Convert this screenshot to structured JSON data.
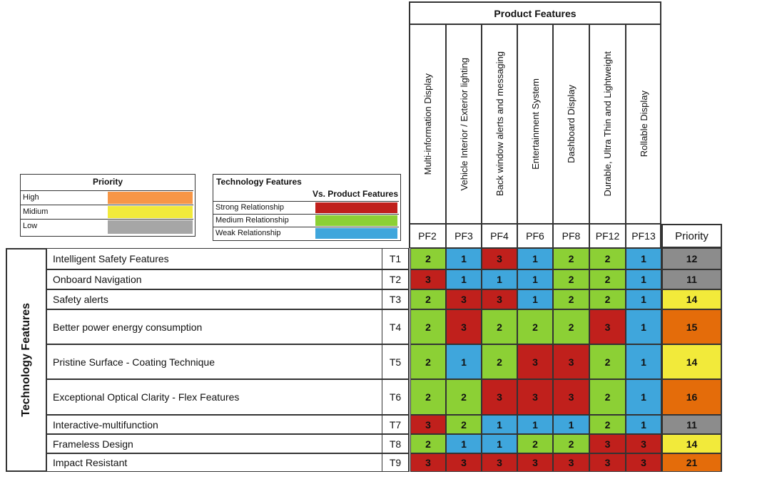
{
  "priority_legend": {
    "title": "Priority",
    "items": [
      {
        "label": "High",
        "color": "#f79646"
      },
      {
        "label": "Midium",
        "color": "#f2ea3a"
      },
      {
        "label": "Low",
        "color": "#a6a6a6"
      }
    ]
  },
  "relationship_legend": {
    "title_line1": "Technology Features",
    "title_line2": "Vs. Product Features",
    "items": [
      {
        "label": "Strong Relationship",
        "color": "#c0201c"
      },
      {
        "label": "Medium Relationship",
        "color": "#8cd035"
      },
      {
        "label": "Weak Relationship",
        "color": "#3fa6dc"
      }
    ]
  },
  "product_features_title": "Product Features",
  "technology_features_title": "Technology Features",
  "priority_header": "Priority",
  "product_features": [
    {
      "name": "Multi-information Display",
      "code": "PF2"
    },
    {
      "name": "Vehicle Interior / Exterior lighting",
      "code": "PF3"
    },
    {
      "name": "Back window alerts and messaging",
      "code": "PF4"
    },
    {
      "name": "Entertainment System",
      "code": "PF6"
    },
    {
      "name": "Dashboard Display",
      "code": "PF8"
    },
    {
      "name": "Durable, Ultra Thin and Lightweight",
      "code": "PF12"
    },
    {
      "name": "Rollable Display",
      "code": "PF13"
    }
  ],
  "colors": {
    "3": "#c0201c",
    "2": "#8cd035",
    "1": "#3fa6dc",
    "priority_high": "#e46c0a",
    "priority_mid": "#f2ea3a",
    "priority_low": "#8c8c8c"
  },
  "technology_features": [
    {
      "name": "Intelligent Safety Features",
      "code": "T1",
      "values": [
        2,
        1,
        3,
        1,
        2,
        2,
        1
      ],
      "priority": 12,
      "level": "low"
    },
    {
      "name": "Onboard Navigation",
      "code": "T2",
      "values": [
        3,
        1,
        1,
        1,
        2,
        2,
        1
      ],
      "priority": 11,
      "level": "low"
    },
    {
      "name": "Safety alerts",
      "code": "T3",
      "values": [
        2,
        3,
        3,
        1,
        2,
        2,
        1
      ],
      "priority": 14,
      "level": "mid"
    },
    {
      "name": "Better power energy consumption",
      "code": "T4",
      "values": [
        2,
        3,
        2,
        2,
        2,
        3,
        1
      ],
      "priority": 15,
      "level": "high"
    },
    {
      "name": "Pristine Surface - Coating Technique",
      "code": "T5",
      "values": [
        2,
        1,
        2,
        3,
        3,
        2,
        1
      ],
      "priority": 14,
      "level": "mid"
    },
    {
      "name": "Exceptional Optical Clarity - Flex Features",
      "code": "T6",
      "values": [
        2,
        2,
        3,
        3,
        3,
        2,
        1
      ],
      "priority": 16,
      "level": "high"
    },
    {
      "name": "Interactive-multifunction",
      "code": "T7",
      "values": [
        3,
        2,
        1,
        1,
        1,
        2,
        1
      ],
      "priority": 11,
      "level": "low"
    },
    {
      "name": "Frameless Design",
      "code": "T8",
      "values": [
        2,
        1,
        1,
        2,
        2,
        3,
        3
      ],
      "priority": 14,
      "level": "mid"
    },
    {
      "name": "Impact Resistant",
      "code": "T9",
      "values": [
        3,
        3,
        3,
        3,
        3,
        3,
        3
      ],
      "priority": 21,
      "level": "high"
    }
  ]
}
